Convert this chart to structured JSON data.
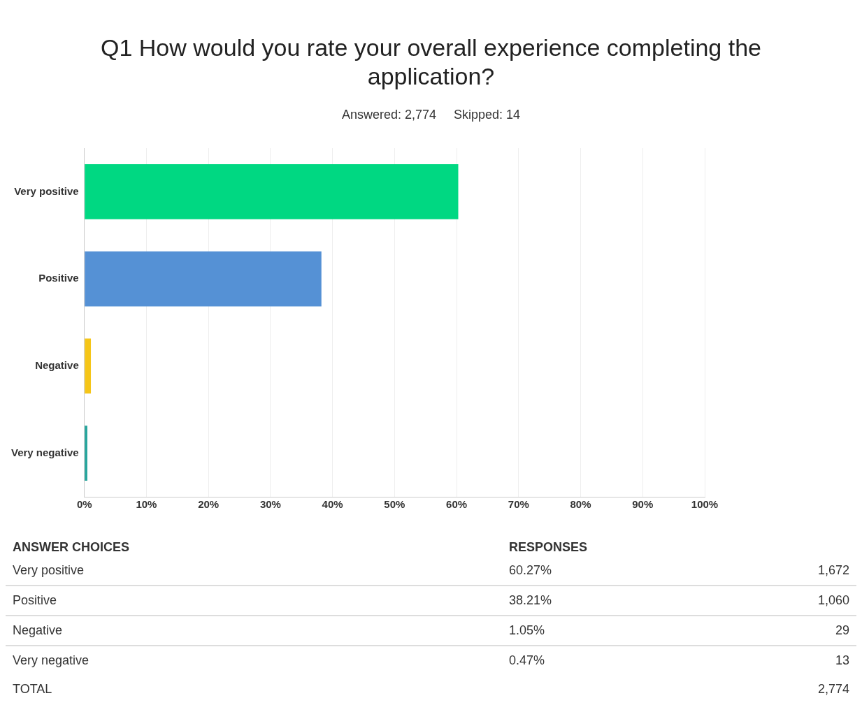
{
  "chart_data": [
    {
      "type": "bar",
      "orientation": "horizontal",
      "title": "Q1 How would you rate your overall experience completing the application?",
      "subtitle": "Answered: 2,774     Skipped: 14",
      "categories": [
        "Very positive",
        "Positive",
        "Negative",
        "Very negative"
      ],
      "values": [
        60.27,
        38.21,
        1.05,
        0.47
      ],
      "colors": [
        "#00d882",
        "#5591d5",
        "#f5c518",
        "#22a39a"
      ],
      "value_labels": [
        "60.27%",
        "38.21%",
        "1.05%",
        "0.47%"
      ],
      "xlim": [
        0,
        100
      ],
      "xticks": [
        {
          "value": 0,
          "label": "0%"
        },
        {
          "value": 10,
          "label": "10%"
        },
        {
          "value": 20,
          "label": "20%"
        },
        {
          "value": 30,
          "label": "30%"
        },
        {
          "value": 40,
          "label": "40%"
        },
        {
          "value": 50,
          "label": "50%"
        },
        {
          "value": 60,
          "label": "60%"
        },
        {
          "value": 70,
          "label": "70%"
        },
        {
          "value": 80,
          "label": "80%"
        },
        {
          "value": 90,
          "label": "90%"
        },
        {
          "value": 100,
          "label": "100%"
        }
      ],
      "grid": "x"
    },
    {
      "type": "other",
      "categories": [
        "Very positive",
        "Positive",
        "Negative",
        "Very negative"
      ],
      "value_labels": [
        "1,672",
        "1,060",
        "29",
        "13"
      ],
      "annotations": [
        "ANSWER CHOICES",
        "RESPONSES",
        "TOTAL",
        "2,774"
      ]
    }
  ]
}
